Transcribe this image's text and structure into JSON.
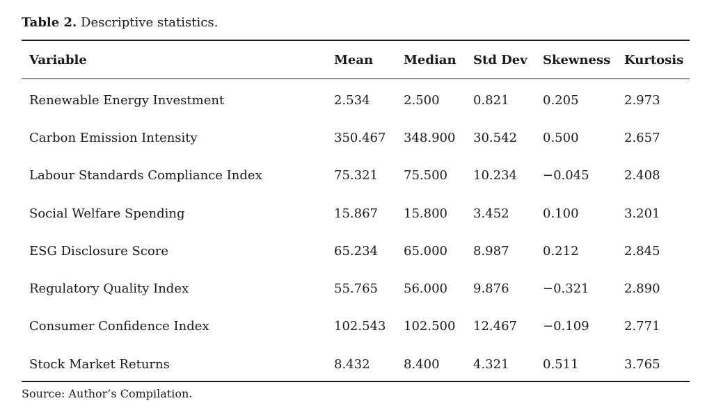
{
  "caption": {
    "label": "Table 2.",
    "text": "Descriptive statistics."
  },
  "table": {
    "headers": [
      "Variable",
      "Mean",
      "Median",
      "Std Dev",
      "Skewness",
      "Kurtosis"
    ],
    "rows": [
      [
        "Renewable Energy Investment",
        "2.534",
        "2.500",
        "0.821",
        "0.205",
        "2.973"
      ],
      [
        "Carbon Emission Intensity",
        "350.467",
        "348.900",
        "30.542",
        "0.500",
        "2.657"
      ],
      [
        "Labour Standards Compliance Index",
        "75.321",
        "75.500",
        "10.234",
        "−0.045",
        "2.408"
      ],
      [
        "Social Welfare Spending",
        "15.867",
        "15.800",
        "3.452",
        "0.100",
        "3.201"
      ],
      [
        "ESG Disclosure Score",
        "65.234",
        "65.000",
        "8.987",
        "0.212",
        "2.845"
      ],
      [
        "Regulatory Quality Index",
        "55.765",
        "56.000",
        "9.876",
        "−0.321",
        "2.890"
      ],
      [
        "Consumer Confidence Index",
        "102.543",
        "102.500",
        "12.467",
        "−0.109",
        "2.771"
      ],
      [
        "Stock Market Returns",
        "8.432",
        "8.400",
        "4.321",
        "0.511",
        "3.765"
      ]
    ]
  },
  "source": "Source: Author’s Compilation."
}
